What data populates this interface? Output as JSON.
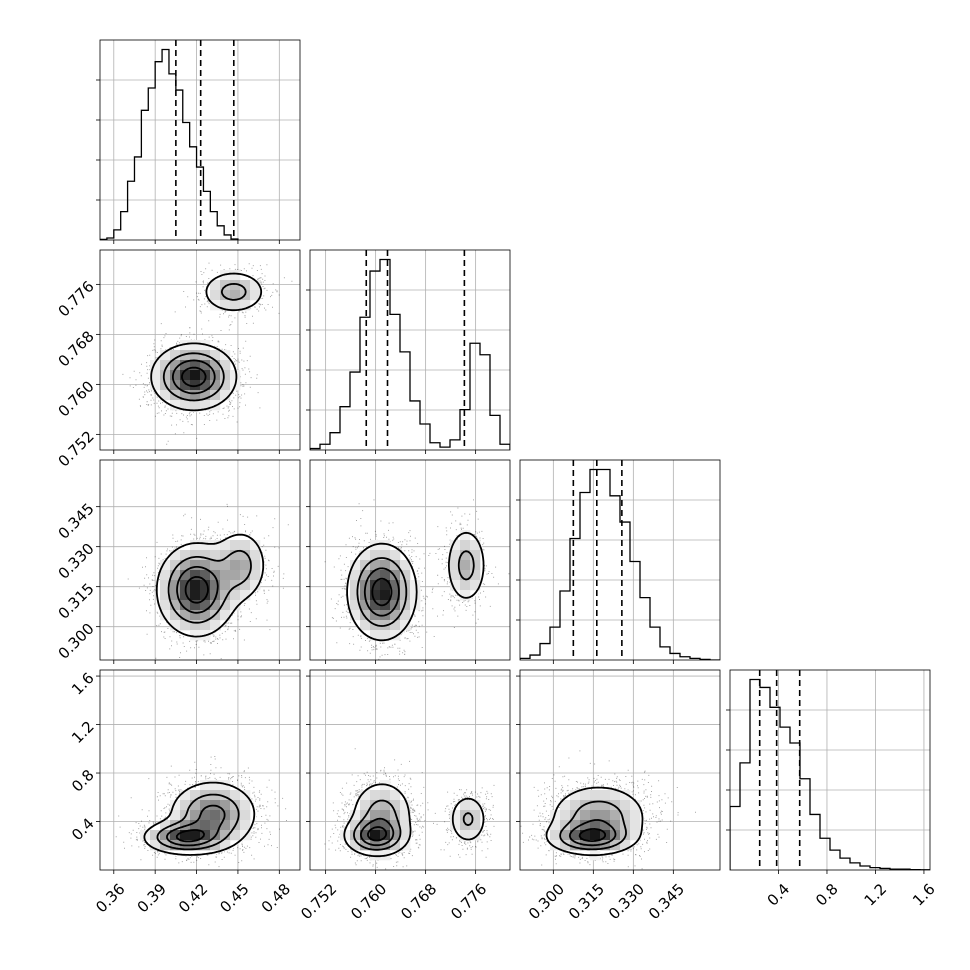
{
  "chart_data": {
    "type": "corner",
    "parameters": [
      {
        "range": [
          0.35,
          0.495
        ],
        "ticks": [
          0.36,
          0.39,
          0.42,
          0.45,
          0.48
        ],
        "tick_labels": [
          "0.36",
          "0.39",
          "0.42",
          "0.45",
          "0.48"
        ],
        "quantiles": [
          0.405,
          0.423,
          0.447
        ],
        "hist": {
          "start": 0.35,
          "width": 0.005,
          "counts": [
            0.3,
            1,
            5,
            14,
            29,
            41,
            64,
            75,
            88,
            94,
            82,
            74,
            58,
            46,
            36,
            24,
            14,
            7,
            2.5,
            0.5
          ]
        }
      },
      {
        "range": [
          0.7495,
          0.7815
        ],
        "ticks": [
          0.752,
          0.76,
          0.768,
          0.776
        ],
        "tick_labels": [
          "0.752",
          "0.760",
          "0.768",
          "0.776"
        ],
        "inner_ticks": [
          0.752,
          0.76,
          0.768,
          0.776
        ],
        "quantiles": [
          0.7585,
          0.7619,
          0.7742
        ],
        "hist": {
          "start": 0.7495,
          "width": 0.0016,
          "counts": [
            0.5,
            2,
            6,
            15,
            27,
            46,
            62,
            66,
            47,
            34,
            17,
            9,
            2.5,
            1,
            3.5,
            14,
            37,
            33,
            12,
            2
          ]
        }
      },
      {
        "range": [
          0.2875,
          0.3625
        ],
        "ticks": [
          0.3,
          0.315,
          0.33,
          0.345
        ],
        "tick_labels": [
          "0.300",
          "0.315",
          "0.330",
          "0.345"
        ],
        "quantiles": [
          0.3075,
          0.3163,
          0.3257
        ],
        "hist": {
          "start": 0.2875,
          "width": 0.00375,
          "counts": [
            0.5,
            1.5,
            5,
            10,
            21,
            37,
            51,
            58,
            58,
            50,
            42,
            30,
            19,
            10,
            4,
            2,
            1,
            0.5,
            0.2,
            0
          ]
        }
      },
      {
        "range": [
          0.0,
          1.65
        ],
        "ticks": [
          0.4,
          0.8,
          1.2,
          1.6
        ],
        "tick_labels": [
          "0.4",
          "0.8",
          "1.2",
          "1.6"
        ],
        "inner_ticks": [
          0.4,
          0.8,
          1.2,
          1.6
        ],
        "quantiles": [
          0.245,
          0.385,
          0.575
        ],
        "hist": {
          "start": 0.0,
          "width": 0.0825,
          "counts": [
            8,
            13.5,
            24,
            23,
            20.5,
            18,
            16,
            11.5,
            7,
            4,
            2.5,
            1.5,
            0.9,
            0.5,
            0.3,
            0.2,
            0.1,
            0.1,
            0.05,
            0.03
          ]
        }
      }
    ],
    "panels": [
      {
        "row": 1,
        "col": 0,
        "blobs": [
          {
            "cx": 0.418,
            "cy": 0.7612,
            "sx": 0.015,
            "sy": 0.0026,
            "w": 1.0
          },
          {
            "cx": 0.447,
            "cy": 0.7748,
            "sx": 0.0122,
            "sy": 0.0018,
            "w": 0.45
          }
        ]
      },
      {
        "row": 2,
        "col": 0,
        "blobs": [
          {
            "cx": 0.42,
            "cy": 0.3138,
            "sx": 0.014,
            "sy": 0.0085,
            "w": 1.0
          },
          {
            "cx": 0.452,
            "cy": 0.323,
            "sx": 0.01,
            "sy": 0.007,
            "w": 0.45
          }
        ]
      },
      {
        "row": 2,
        "col": 1,
        "blobs": [
          {
            "cx": 0.761,
            "cy": 0.313,
            "sx": 0.0027,
            "sy": 0.0088,
            "w": 1.0
          },
          {
            "cx": 0.7745,
            "cy": 0.323,
            "sx": 0.0017,
            "sy": 0.0075,
            "w": 0.45
          }
        ]
      },
      {
        "row": 3,
        "col": 0,
        "blobs": [
          {
            "cx": 0.412,
            "cy": 0.27,
            "sx": 0.015,
            "sy": 0.07,
            "w": 1.0
          },
          {
            "cx": 0.432,
            "cy": 0.46,
            "sx": 0.016,
            "sy": 0.14,
            "w": 0.8
          }
        ]
      },
      {
        "row": 3,
        "col": 1,
        "blobs": [
          {
            "cx": 0.76,
            "cy": 0.28,
            "sx": 0.0025,
            "sy": 0.08,
            "w": 1.0
          },
          {
            "cx": 0.761,
            "cy": 0.46,
            "sx": 0.0026,
            "sy": 0.15,
            "w": 0.6
          },
          {
            "cx": 0.7748,
            "cy": 0.42,
            "sx": 0.0016,
            "sy": 0.11,
            "w": 0.5
          }
        ]
      },
      {
        "row": 3,
        "col": 2,
        "blobs": [
          {
            "cx": 0.314,
            "cy": 0.27,
            "sx": 0.008,
            "sy": 0.07,
            "w": 1.0
          },
          {
            "cx": 0.317,
            "cy": 0.44,
            "sx": 0.0095,
            "sy": 0.14,
            "w": 0.7
          }
        ]
      }
    ],
    "grid": true,
    "colors": {
      "line": "#000000",
      "grid": "#b0b0b0",
      "points": "#000000"
    }
  }
}
